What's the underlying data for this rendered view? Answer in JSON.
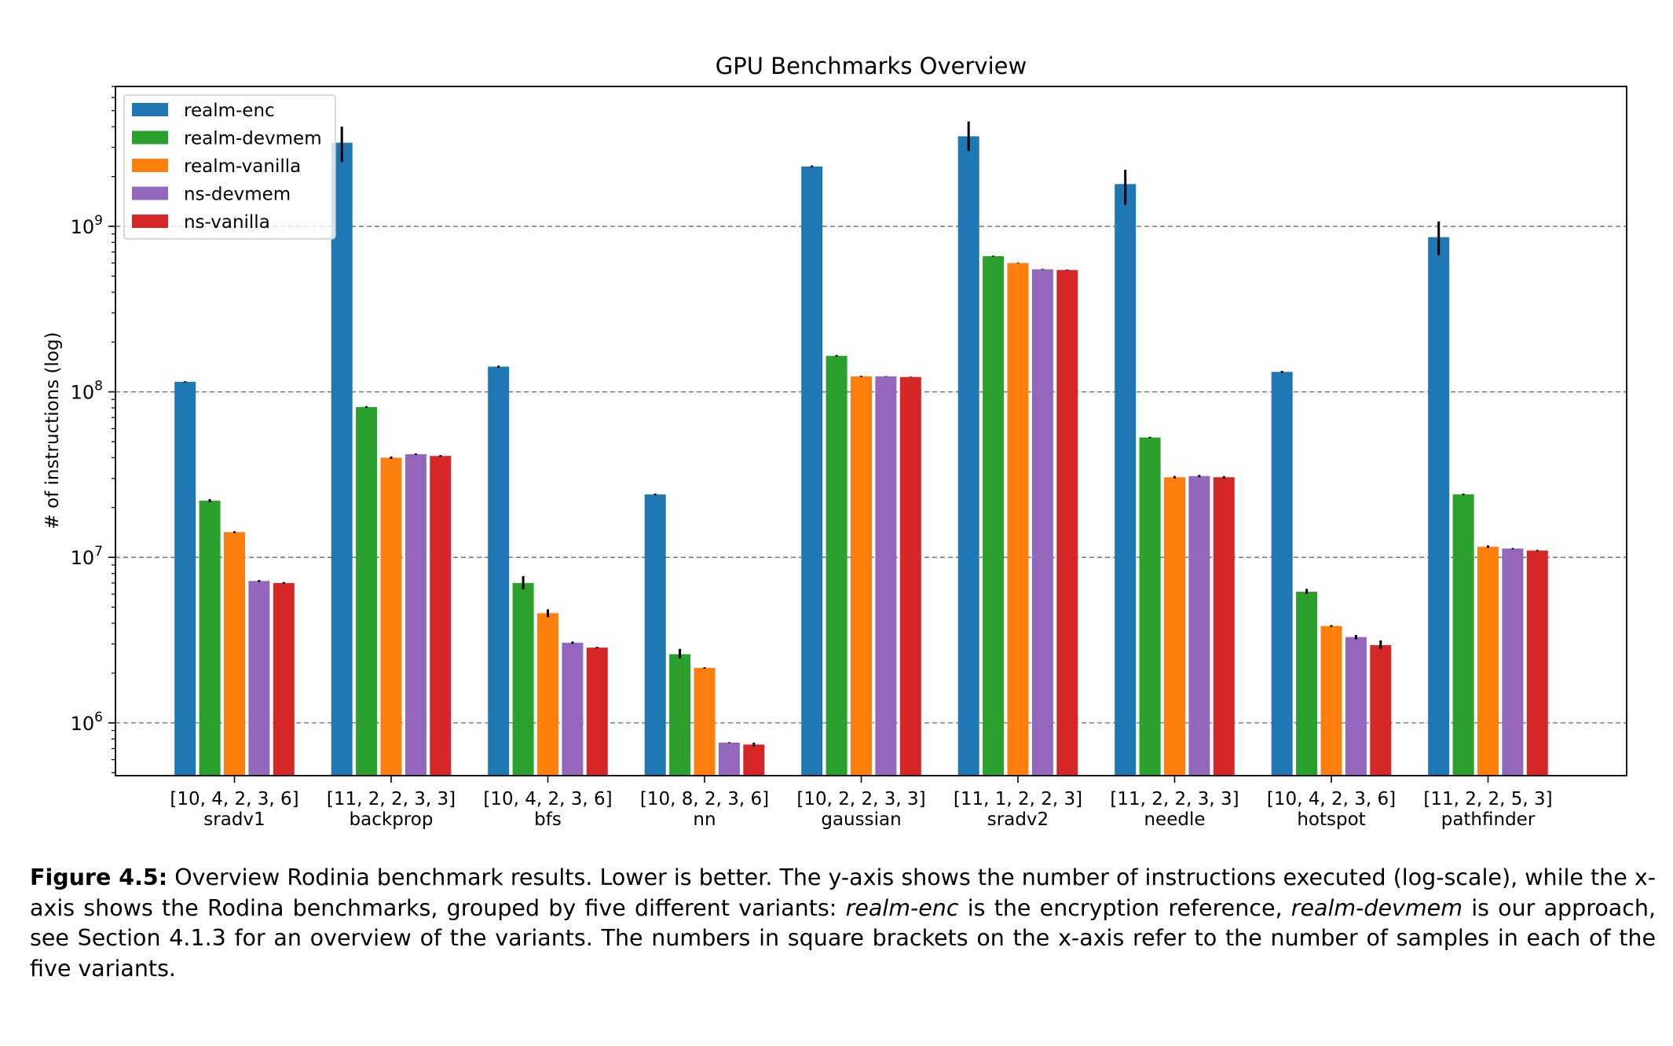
{
  "chart_data": {
    "type": "bar",
    "title": "GPU Benchmarks Overview",
    "ylabel": "# of instructions (log)",
    "xlabel": "",
    "yscale": "log",
    "ylim": [
      480000,
      7000000000
    ],
    "yticks": [
      {
        "value": 1000000,
        "base": "10",
        "exp": "6"
      },
      {
        "value": 10000000,
        "base": "10",
        "exp": "7"
      },
      {
        "value": 100000000,
        "base": "10",
        "exp": "8"
      },
      {
        "value": 1000000000,
        "base": "10",
        "exp": "9"
      }
    ],
    "grid": "horizontal-dashed",
    "legend_position": "top-left",
    "categories": [
      "sradv1",
      "backprop",
      "bfs",
      "nn",
      "gaussian",
      "sradv2",
      "needle",
      "hotspot",
      "pathfinder"
    ],
    "sample_labels": [
      "[10, 4, 2, 3, 6]",
      "[11, 2, 2, 3, 3]",
      "[10, 4, 2, 3, 6]",
      "[10, 8, 2, 3, 6]",
      "[10, 2, 2, 3, 3]",
      "[11, 1, 2, 2, 3]",
      "[11, 2, 2, 3, 3]",
      "[10, 4, 2, 3, 6]",
      "[11, 2, 2, 5, 3]"
    ],
    "series": [
      {
        "name": "realm-enc",
        "color": "#1f77b4",
        "values": [
          115000000,
          3200000000,
          142000000,
          24000000,
          2300000000,
          3500000000,
          1800000000,
          132000000,
          860000000
        ],
        "err_low": [
          114000000,
          2450000000,
          140000000,
          23700000,
          2270000000,
          2850000000,
          1350000000,
          130000000,
          670000000
        ],
        "err_high": [
          116000000,
          4000000000,
          144000000,
          24300000,
          2330000000,
          4300000000,
          2200000000,
          134000000,
          1070000000
        ]
      },
      {
        "name": "realm-devmem",
        "color": "#2ca02c",
        "values": [
          22000000,
          81000000,
          7000000,
          2600000,
          165000000,
          660000000,
          53000000,
          6200000,
          24000000
        ],
        "err_low": [
          21500000,
          80000000,
          6400000,
          2450000,
          163000000,
          655000000,
          52500000,
          6000000,
          23700000
        ],
        "err_high": [
          22500000,
          82000000,
          7700000,
          2800000,
          167000000,
          665000000,
          53500000,
          6450000,
          24300000
        ]
      },
      {
        "name": "realm-vanilla",
        "color": "#ff7f0e",
        "values": [
          14200000,
          40000000,
          4600000,
          2150000,
          124000000,
          600000000,
          30500000,
          3850000,
          11600000
        ],
        "err_low": [
          14000000,
          39300000,
          4350000,
          2130000,
          123000000,
          597000000,
          30000000,
          3800000,
          11400000
        ],
        "err_high": [
          14400000,
          40700000,
          4850000,
          2170000,
          125000000,
          603000000,
          31000000,
          3900000,
          11800000
        ]
      },
      {
        "name": "ns-devmem",
        "color": "#9467bd",
        "values": [
          7200000,
          42000000,
          3050000,
          760000,
          124000000,
          550000000,
          31000000,
          3300000,
          11300000
        ],
        "err_low": [
          7100000,
          41500000,
          3000000,
          755000,
          123500000,
          547000000,
          30500000,
          3200000,
          11200000
        ],
        "err_high": [
          7300000,
          42500000,
          3100000,
          765000,
          124500000,
          553000000,
          31500000,
          3400000,
          11400000
        ]
      },
      {
        "name": "ns-vanilla",
        "color": "#d62728",
        "values": [
          7000000,
          41000000,
          2850000,
          740000,
          123000000,
          545000000,
          30500000,
          2950000,
          11000000
        ],
        "err_low": [
          6900000,
          40500000,
          2820000,
          720000,
          122500000,
          542000000,
          30000000,
          2800000,
          10900000
        ],
        "err_high": [
          7100000,
          41500000,
          2880000,
          760000,
          123500000,
          548000000,
          31000000,
          3150000,
          11100000
        ]
      }
    ]
  },
  "caption": {
    "label": "Figure 4.5:",
    "part1": " Overview Rodinia benchmark results. Lower is better. The y-axis shows the number of instructions executed (log-scale), while the x-axis shows the Rodina benchmarks, grouped by five different variants: ",
    "em1": "realm-enc",
    "part2": " is the encryption reference, ",
    "em2": "realm-devmem",
    "part3": " is our approach, see Section 4.1.3 for an overview of the variants. The numbers in square brackets on the x-axis refer to the number of samples in each of the five variants."
  }
}
